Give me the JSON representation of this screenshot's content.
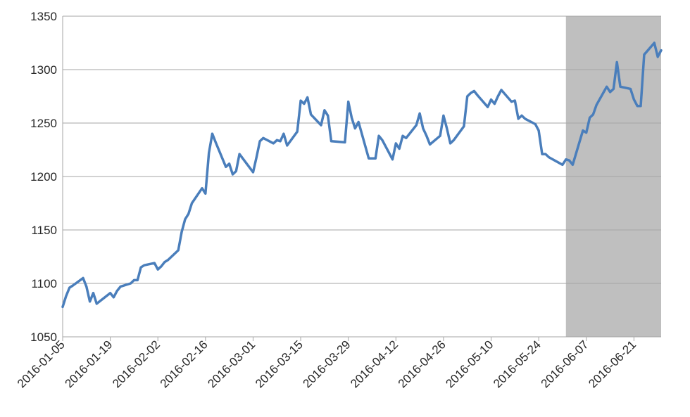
{
  "chart_data": {
    "type": "line",
    "title": "",
    "xlabel": "",
    "ylabel": "",
    "ylim": [
      1050,
      1350
    ],
    "y_ticks": [
      1050,
      1100,
      1150,
      1200,
      1250,
      1300,
      1350
    ],
    "x_tick_labels": [
      "2016-01-05",
      "2016-01-19",
      "2016-02-02",
      "2016-02-16",
      "2016-03-01",
      "2016-03-15",
      "2016-03-29",
      "2016-04-12",
      "2016-04-26",
      "2016-05-10",
      "2016-05-24",
      "2016-06-07",
      "2016-06-21"
    ],
    "grid": true,
    "shaded_region": {
      "start": "2016-06-01",
      "end": "2016-06-29",
      "color": "#bfbfbf"
    },
    "series": [
      {
        "color": "#4a7ebb",
        "points": [
          [
            "2016-01-05",
            1078
          ],
          [
            "2016-01-06",
            1088
          ],
          [
            "2016-01-07",
            1096
          ],
          [
            "2016-01-08",
            1098
          ],
          [
            "2016-01-11",
            1105
          ],
          [
            "2016-01-12",
            1097
          ],
          [
            "2016-01-13",
            1083
          ],
          [
            "2016-01-14",
            1091
          ],
          [
            "2016-01-15",
            1081
          ],
          [
            "2016-01-19",
            1091
          ],
          [
            "2016-01-20",
            1087
          ],
          [
            "2016-01-21",
            1093
          ],
          [
            "2016-01-22",
            1097
          ],
          [
            "2016-01-25",
            1100
          ],
          [
            "2016-01-26",
            1103
          ],
          [
            "2016-01-27",
            1103
          ],
          [
            "2016-01-28",
            1115
          ],
          [
            "2016-01-29",
            1117
          ],
          [
            "2016-02-01",
            1119
          ],
          [
            "2016-02-02",
            1113
          ],
          [
            "2016-02-03",
            1116
          ],
          [
            "2016-02-04",
            1120
          ],
          [
            "2016-02-05",
            1122
          ],
          [
            "2016-02-08",
            1131
          ],
          [
            "2016-02-09",
            1148
          ],
          [
            "2016-02-10",
            1160
          ],
          [
            "2016-02-11",
            1165
          ],
          [
            "2016-02-12",
            1175
          ],
          [
            "2016-02-15",
            1189
          ],
          [
            "2016-02-16",
            1184
          ],
          [
            "2016-02-17",
            1222
          ],
          [
            "2016-02-18",
            1240
          ],
          [
            "2016-02-19",
            1232
          ],
          [
            "2016-02-22",
            1209
          ],
          [
            "2016-02-23",
            1212
          ],
          [
            "2016-02-24",
            1202
          ],
          [
            "2016-02-25",
            1205
          ],
          [
            "2016-02-26",
            1221
          ],
          [
            "2016-03-01",
            1204
          ],
          [
            "2016-03-02",
            1218
          ],
          [
            "2016-03-03",
            1233
          ],
          [
            "2016-03-04",
            1236
          ],
          [
            "2016-03-07",
            1231
          ],
          [
            "2016-03-08",
            1234
          ],
          [
            "2016-03-09",
            1233
          ],
          [
            "2016-03-10",
            1240
          ],
          [
            "2016-03-11",
            1229
          ],
          [
            "2016-03-14",
            1242
          ],
          [
            "2016-03-15",
            1271
          ],
          [
            "2016-03-16",
            1268
          ],
          [
            "2016-03-17",
            1274
          ],
          [
            "2016-03-18",
            1258
          ],
          [
            "2016-03-21",
            1248
          ],
          [
            "2016-03-22",
            1262
          ],
          [
            "2016-03-23",
            1257
          ],
          [
            "2016-03-24",
            1233
          ],
          [
            "2016-03-28",
            1232
          ],
          [
            "2016-03-29",
            1270
          ],
          [
            "2016-03-30",
            1255
          ],
          [
            "2016-03-31",
            1245
          ],
          [
            "2016-04-01",
            1251
          ],
          [
            "2016-04-04",
            1217
          ],
          [
            "2016-04-05",
            1217
          ],
          [
            "2016-04-06",
            1217
          ],
          [
            "2016-04-07",
            1238
          ],
          [
            "2016-04-08",
            1234
          ],
          [
            "2016-04-11",
            1216
          ],
          [
            "2016-04-12",
            1231
          ],
          [
            "2016-04-13",
            1226
          ],
          [
            "2016-04-14",
            1238
          ],
          [
            "2016-04-15",
            1236
          ],
          [
            "2016-04-18",
            1248
          ],
          [
            "2016-04-19",
            1259
          ],
          [
            "2016-04-20",
            1245
          ],
          [
            "2016-04-21",
            1238
          ],
          [
            "2016-04-22",
            1230
          ],
          [
            "2016-04-25",
            1238
          ],
          [
            "2016-04-26",
            1257
          ],
          [
            "2016-04-27",
            1245
          ],
          [
            "2016-04-28",
            1231
          ],
          [
            "2016-04-29",
            1234
          ],
          [
            "2016-05-02",
            1247
          ],
          [
            "2016-05-03",
            1275
          ],
          [
            "2016-05-04",
            1278
          ],
          [
            "2016-05-05",
            1280
          ],
          [
            "2016-05-06",
            1276
          ],
          [
            "2016-05-09",
            1265
          ],
          [
            "2016-05-10",
            1272
          ],
          [
            "2016-05-11",
            1268
          ],
          [
            "2016-05-12",
            1275
          ],
          [
            "2016-05-13",
            1281
          ],
          [
            "2016-05-16",
            1270
          ],
          [
            "2016-05-17",
            1271
          ],
          [
            "2016-05-18",
            1254
          ],
          [
            "2016-05-19",
            1257
          ],
          [
            "2016-05-20",
            1254
          ],
          [
            "2016-05-23",
            1249
          ],
          [
            "2016-05-24",
            1243
          ],
          [
            "2016-05-25",
            1221
          ],
          [
            "2016-05-26",
            1221
          ],
          [
            "2016-05-27",
            1218
          ],
          [
            "2016-05-31",
            1211
          ],
          [
            "2016-06-01",
            1216
          ],
          [
            "2016-06-02",
            1215
          ],
          [
            "2016-06-03",
            1211
          ],
          [
            "2016-06-06",
            1243
          ],
          [
            "2016-06-07",
            1241
          ],
          [
            "2016-06-08",
            1255
          ],
          [
            "2016-06-09",
            1258
          ],
          [
            "2016-06-10",
            1267
          ],
          [
            "2016-06-13",
            1284
          ],
          [
            "2016-06-14",
            1279
          ],
          [
            "2016-06-15",
            1282
          ],
          [
            "2016-06-16",
            1307
          ],
          [
            "2016-06-17",
            1284
          ],
          [
            "2016-06-20",
            1282
          ],
          [
            "2016-06-21",
            1272
          ],
          [
            "2016-06-22",
            1266
          ],
          [
            "2016-06-23",
            1266
          ],
          [
            "2016-06-24",
            1314
          ],
          [
            "2016-06-27",
            1325
          ],
          [
            "2016-06-28",
            1312
          ],
          [
            "2016-06-29",
            1318
          ]
        ]
      }
    ]
  }
}
